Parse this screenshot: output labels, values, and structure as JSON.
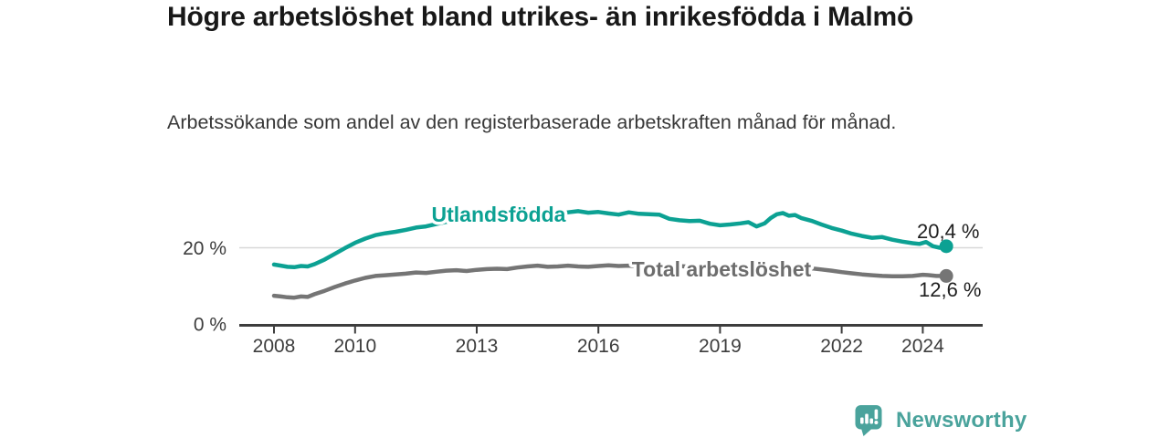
{
  "chart_data": {
    "type": "line",
    "title": "Högre arbetslöshet bland utrikes- än inrikesfödda i Malmö",
    "subtitle": "Arbetssökande som andel av den registerbaserade arbetskraften månad för månad.",
    "x_axis": {
      "ticks": [
        2008,
        2010,
        2013,
        2016,
        2019,
        2022,
        2024
      ],
      "labels": [
        "2008",
        "2010",
        "2013",
        "2016",
        "2019",
        "2022",
        "2024"
      ],
      "range": [
        2007.1,
        2025.5
      ]
    },
    "y_axis": {
      "unit": "%",
      "ticks": [
        {
          "value": 0,
          "label": "0 %"
        },
        {
          "value": 20,
          "label": "20 %"
        }
      ],
      "gridlines": [
        20
      ],
      "range": [
        0,
        31
      ]
    },
    "legend_position": "inline-labels",
    "style": {
      "grid_color": "#d8d8d8",
      "axis_color": "#3d3d3d",
      "tick_color": "#3d3d3d",
      "value_color": "#1f1f1f",
      "background": "#ffffff"
    },
    "series": [
      {
        "id": "utlandsfodda",
        "name": "Utlandsfödda",
        "color": "#0ca193",
        "end_label": "20,4 %",
        "end_value": 20.4,
        "x": [
          2008.0,
          2008.17,
          2008.33,
          2008.5,
          2008.67,
          2008.83,
          2009.0,
          2009.25,
          2009.5,
          2009.75,
          2010.0,
          2010.25,
          2010.5,
          2010.75,
          2011.0,
          2011.25,
          2011.5,
          2011.75,
          2012.0,
          2012.25,
          2012.5,
          2012.75,
          2013.0,
          2013.25,
          2013.5,
          2013.75,
          2014.0,
          2014.25,
          2014.5,
          2014.75,
          2015.0,
          2015.25,
          2015.5,
          2015.75,
          2016.0,
          2016.25,
          2016.5,
          2016.75,
          2017.0,
          2017.25,
          2017.5,
          2017.75,
          2018.0,
          2018.25,
          2018.5,
          2018.75,
          2019.0,
          2019.25,
          2019.5,
          2019.7,
          2019.9,
          2020.1,
          2020.25,
          2020.4,
          2020.55,
          2020.7,
          2020.85,
          2021.0,
          2021.25,
          2021.5,
          2021.75,
          2022.0,
          2022.25,
          2022.5,
          2022.75,
          2023.0,
          2023.25,
          2023.5,
          2023.75,
          2023.92,
          2024.08,
          2024.25,
          2024.42,
          2024.58
        ],
        "values": [
          15.6,
          15.3,
          15.0,
          14.9,
          15.2,
          15.1,
          15.7,
          16.9,
          18.4,
          19.9,
          21.3,
          22.4,
          23.3,
          23.8,
          24.2,
          24.7,
          25.3,
          25.6,
          26.2,
          26.8,
          27.1,
          26.9,
          27.4,
          27.8,
          28.0,
          27.8,
          28.3,
          28.5,
          28.4,
          28.7,
          28.8,
          29.3,
          29.6,
          29.2,
          29.4,
          29.0,
          28.7,
          29.3,
          28.9,
          28.8,
          28.7,
          27.6,
          27.2,
          27.0,
          27.1,
          26.3,
          25.9,
          26.1,
          26.4,
          26.7,
          25.6,
          26.4,
          27.8,
          28.8,
          29.1,
          28.4,
          28.6,
          27.8,
          27.1,
          26.1,
          25.2,
          24.5,
          23.7,
          23.1,
          22.6,
          22.8,
          22.1,
          21.6,
          21.2,
          21.0,
          21.5,
          20.4,
          20.0,
          20.4
        ]
      },
      {
        "id": "total",
        "name": "Total arbetslöshet",
        "color": "#757575",
        "label_color": "#6d6d6d",
        "end_label": "12,6 %",
        "end_value": 12.6,
        "x": [
          2008.0,
          2008.17,
          2008.33,
          2008.5,
          2008.67,
          2008.83,
          2009.0,
          2009.25,
          2009.5,
          2009.75,
          2010.0,
          2010.25,
          2010.5,
          2010.75,
          2011.0,
          2011.25,
          2011.5,
          2011.75,
          2012.0,
          2012.25,
          2012.5,
          2012.75,
          2013.0,
          2013.25,
          2013.5,
          2013.75,
          2014.0,
          2014.25,
          2014.5,
          2014.75,
          2015.0,
          2015.25,
          2015.5,
          2015.75,
          2016.0,
          2016.25,
          2016.5,
          2016.75,
          2017.0,
          2017.25,
          2017.5,
          2017.75,
          2018.0,
          2018.25,
          2018.5,
          2018.75,
          2019.0,
          2019.25,
          2019.5,
          2019.75,
          2020.0,
          2020.25,
          2020.5,
          2020.75,
          2021.0,
          2021.25,
          2021.5,
          2021.75,
          2022.0,
          2022.25,
          2022.5,
          2022.75,
          2023.0,
          2023.25,
          2023.5,
          2023.75,
          2024.0,
          2024.17,
          2024.33,
          2024.58
        ],
        "values": [
          7.4,
          7.2,
          7.0,
          6.9,
          7.2,
          7.1,
          7.8,
          8.7,
          9.7,
          10.6,
          11.4,
          12.1,
          12.6,
          12.8,
          13.0,
          13.2,
          13.5,
          13.4,
          13.7,
          14.0,
          14.1,
          13.9,
          14.2,
          14.4,
          14.5,
          14.4,
          14.8,
          15.1,
          15.3,
          15.0,
          15.1,
          15.3,
          15.1,
          15.0,
          15.2,
          15.4,
          15.2,
          15.3,
          15.1,
          15.2,
          15.3,
          15.1,
          15.2,
          15.0,
          15.1,
          14.9,
          14.8,
          14.9,
          14.7,
          14.5,
          14.6,
          15.0,
          15.3,
          15.1,
          14.9,
          14.6,
          14.3,
          14.0,
          13.6,
          13.3,
          13.0,
          12.8,
          12.6,
          12.5,
          12.5,
          12.6,
          12.9,
          12.8,
          12.6,
          12.6
        ]
      }
    ]
  },
  "branding": {
    "logo_text": "Newsworthy",
    "logo_color": "#4aa39c"
  }
}
